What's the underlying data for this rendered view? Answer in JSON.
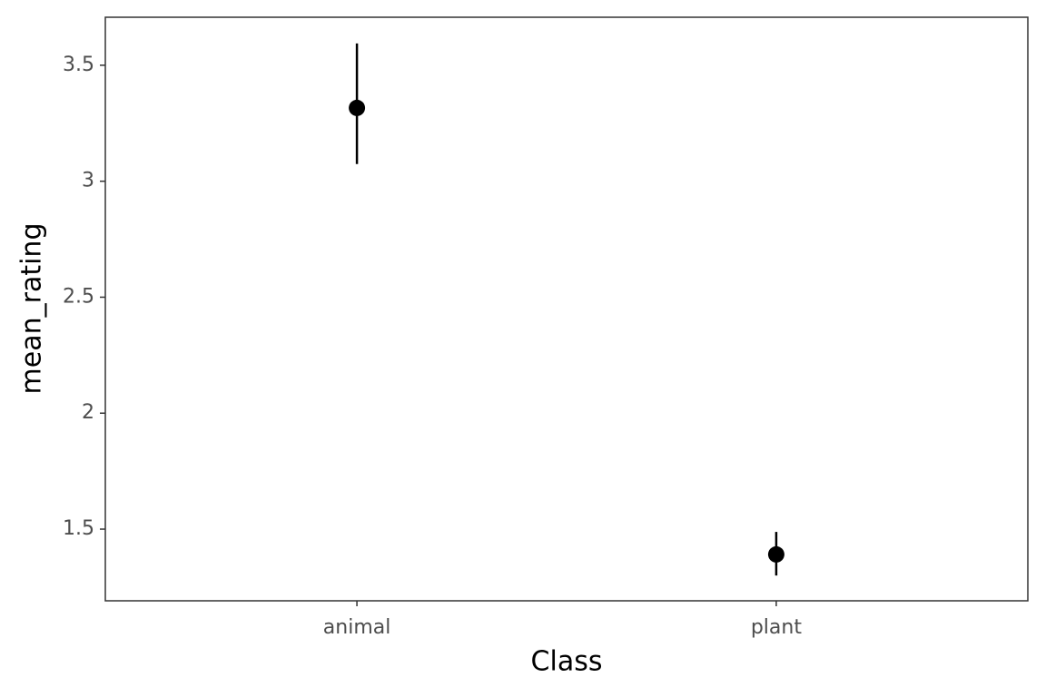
{
  "chart_data": {
    "type": "pointrange",
    "x_label": "Class",
    "y_label": "mean_rating",
    "categories": [
      "animal",
      "plant"
    ],
    "values": [
      3.316,
      1.391
    ],
    "lower": [
      3.074,
      1.3
    ],
    "upper": [
      3.594,
      1.488
    ],
    "color": "#000000",
    "ylim": [
      1.191,
      3.707
    ],
    "yticks": [
      1.5,
      2.0,
      2.5,
      3.0,
      3.5
    ],
    "grid": false
  }
}
